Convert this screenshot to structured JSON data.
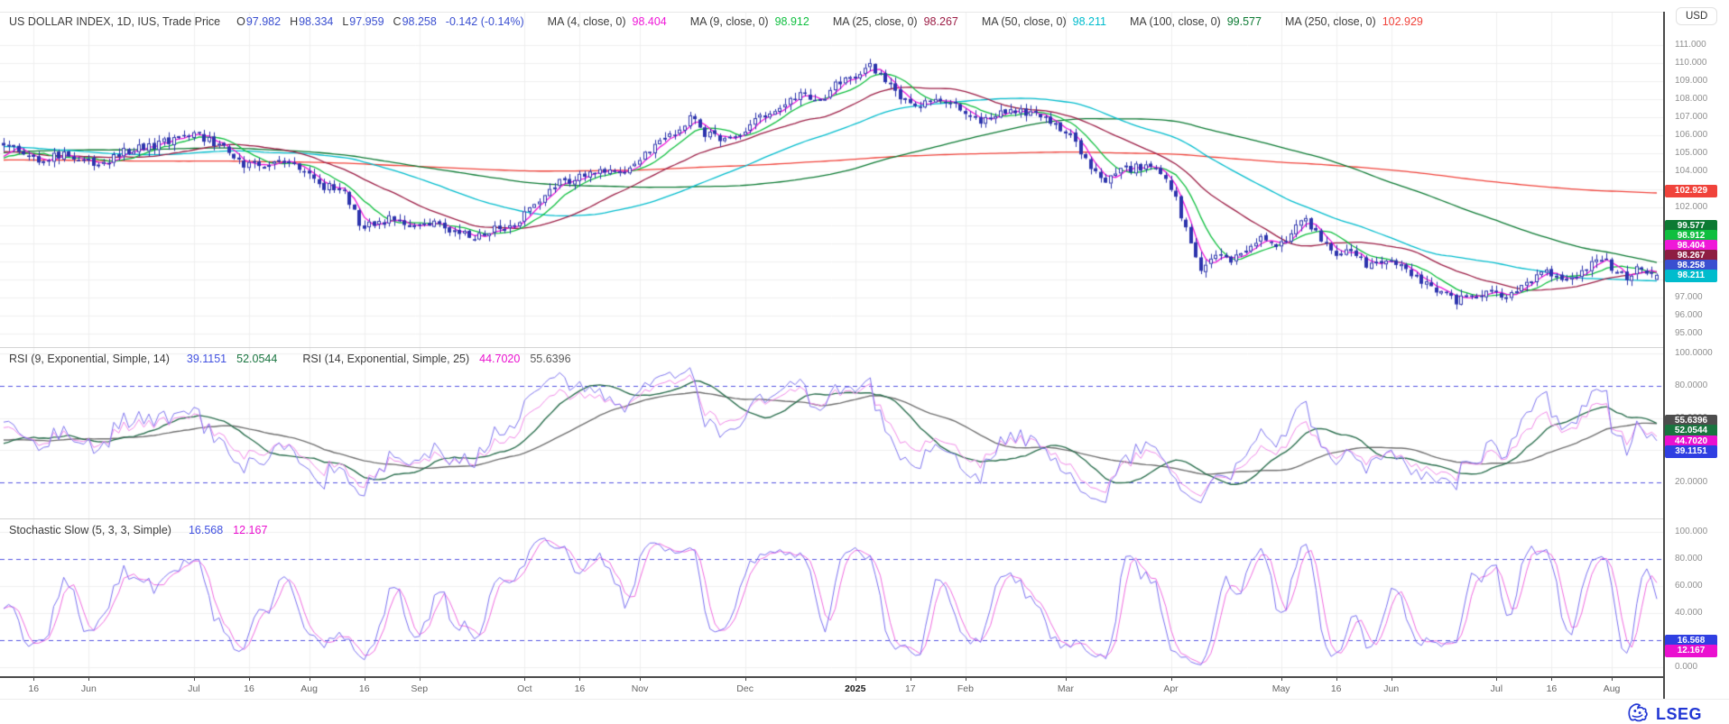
{
  "header": {
    "instrument": "US DOLLAR INDEX, 1D, IUS, Trade Price",
    "fields": [
      {
        "k": "O",
        "v": "97.982"
      },
      {
        "k": "H",
        "v": "98.334"
      },
      {
        "k": "L",
        "v": "97.959"
      },
      {
        "k": "C",
        "v": "98.258"
      }
    ],
    "change": "-0.142 (-0.14%)",
    "value_color": "#3a4fd0",
    "mas": [
      {
        "label": "MA (4, close, 0)",
        "value": "98.404",
        "color": "#ef18d8"
      },
      {
        "label": "MA (9, close, 0)",
        "value": "98.912",
        "color": "#0fbf3f"
      },
      {
        "label": "MA (25, close, 0)",
        "value": "98.267",
        "color": "#9c1e46"
      },
      {
        "label": "MA (50, close, 0)",
        "value": "98.211",
        "color": "#00bccd"
      },
      {
        "label": "MA (100, close, 0)",
        "value": "99.577",
        "color": "#0c7a33"
      },
      {
        "label": "MA (250, close, 0)",
        "value": "102.929",
        "color": "#f0433b"
      }
    ]
  },
  "currency_chip": "USD",
  "price_axis": {
    "ticks": [
      {
        "label": "111.000",
        "value": 111
      },
      {
        "label": "110.000",
        "value": 110
      },
      {
        "label": "109.000",
        "value": 109
      },
      {
        "label": "108.000",
        "value": 108
      },
      {
        "label": "107.000",
        "value": 107
      },
      {
        "label": "106.000",
        "value": 106
      },
      {
        "label": "105.000",
        "value": 105
      },
      {
        "label": "104.000",
        "value": 104
      },
      {
        "label": "103.000",
        "value": 103
      },
      {
        "label": "102.000",
        "value": 102
      },
      {
        "label": "101.000",
        "value": 101
      },
      {
        "label": "100.000",
        "value": 100
      },
      {
        "label": "99.000",
        "value": 99
      },
      {
        "label": "98.000",
        "value": 98
      },
      {
        "label": "97.000",
        "value": 97
      },
      {
        "label": "96.000",
        "value": 96
      },
      {
        "label": "95.000",
        "value": 95
      }
    ],
    "badges": [
      {
        "label": "102.929",
        "value": 102.929,
        "color": "#f0433b"
      },
      {
        "label": "99.577",
        "value": 99.577,
        "color": "#0c7a33"
      },
      {
        "label": "98.912",
        "value": 98.912,
        "color": "#0fbf3f"
      },
      {
        "label": "98.404",
        "value": 98.404,
        "color": "#ef18d8"
      },
      {
        "label": "98.267",
        "value": 98.267,
        "color": "#8e1d42"
      },
      {
        "label": "98.258",
        "value": 98.258,
        "color": "#3a4fd0"
      },
      {
        "label": "98.211",
        "value": 98.211,
        "color": "#00bccd"
      }
    ]
  },
  "rsi": {
    "title_1": "RSI (9, Exponential, Simple, 14)",
    "v1": {
      "text": "39.1151",
      "color": "#4050e0"
    },
    "v2": {
      "text": "52.0544",
      "color": "#19743f"
    },
    "title_2": "RSI (14, Exponential, Simple, 25)",
    "v3": {
      "text": "44.7020",
      "color": "#ea10cf"
    },
    "v4": {
      "text": "55.6396",
      "color": "#5a5a5a"
    },
    "ticks": [
      {
        "label": "100.0000",
        "value": 100
      },
      {
        "label": "80.0000",
        "value": 80
      },
      {
        "label": "60.0000",
        "value": 60
      },
      {
        "label": "40.0000",
        "value": 40
      },
      {
        "label": "20.0000",
        "value": 20
      }
    ],
    "badges": [
      {
        "label": "55.6396",
        "value": 55.6396,
        "color": "#4d4d4d"
      },
      {
        "label": "52.0544",
        "value": 52.0544,
        "color": "#19743f"
      },
      {
        "label": "44.7020",
        "value": 44.702,
        "color": "#ea10cf"
      },
      {
        "label": "39.1151",
        "value": 39.1151,
        "color": "#2f3fe2"
      }
    ]
  },
  "stoch": {
    "title": "Stochastic Slow (5, 3, 3, Simple)",
    "v1": {
      "text": "16.568",
      "color": "#4050e0"
    },
    "v2": {
      "text": "12.167",
      "color": "#ea10cf"
    },
    "ticks": [
      {
        "label": "100.000",
        "value": 100
      },
      {
        "label": "80.000",
        "value": 80
      },
      {
        "label": "60.000",
        "value": 60
      },
      {
        "label": "40.000",
        "value": 40
      },
      {
        "label": "20.000",
        "value": 20
      },
      {
        "label": "0.000",
        "value": 0
      }
    ],
    "badges": [
      {
        "label": "16.568",
        "value": 16.568,
        "color": "#2f3fe2"
      },
      {
        "label": "12.167",
        "value": 12.167,
        "color": "#ea10cf"
      }
    ]
  },
  "footer": {
    "logo_text": "LSEG",
    "logo_color": "#2136d4"
  },
  "chart_data": [
    {
      "type": "candlestick",
      "title": "US DOLLAR INDEX, 1D, IUS, Trade Price",
      "ylabel": "USD",
      "ylim": [
        94.4,
        111.8
      ],
      "y_ticks": [
        111,
        110,
        109,
        108,
        107,
        106,
        105,
        104,
        103,
        102,
        101,
        100,
        99,
        98,
        97,
        96,
        95
      ],
      "grid": true,
      "n_bars": 331,
      "candle_color": "#2d34ad",
      "last_bar": {
        "o": 97.982,
        "h": 98.334,
        "l": 97.959,
        "c": 98.258
      },
      "x_ticks": [
        {
          "label": "16",
          "day": 6
        },
        {
          "label": "Jun",
          "day": 17
        },
        {
          "label": "Jul",
          "day": 38
        },
        {
          "label": "16",
          "day": 49
        },
        {
          "label": "Aug",
          "day": 61
        },
        {
          "label": "16",
          "day": 72
        },
        {
          "label": "Sep",
          "day": 83
        },
        {
          "label": "Oct",
          "day": 104
        },
        {
          "label": "16",
          "day": 115
        },
        {
          "label": "Nov",
          "day": 127
        },
        {
          "label": "Dec",
          "day": 148
        },
        {
          "label": "2025",
          "day": 170,
          "bold": true
        },
        {
          "label": "17",
          "day": 181
        },
        {
          "label": "Feb",
          "day": 192
        },
        {
          "label": "Mar",
          "day": 212
        },
        {
          "label": "Apr",
          "day": 233
        },
        {
          "label": "May",
          "day": 255
        },
        {
          "label": "16",
          "day": 266
        },
        {
          "label": "Jun",
          "day": 277
        },
        {
          "label": "Jul",
          "day": 298
        },
        {
          "label": "16",
          "day": 309
        },
        {
          "label": "Aug",
          "day": 321
        }
      ],
      "close_anchors": [
        [
          0,
          105.6
        ],
        [
          4,
          105.1
        ],
        [
          8,
          104.6
        ],
        [
          12,
          105.0
        ],
        [
          16,
          104.5
        ],
        [
          20,
          104.35
        ],
        [
          24,
          105.1
        ],
        [
          28,
          105.3
        ],
        [
          32,
          105.6
        ],
        [
          36,
          106.0
        ],
        [
          40,
          105.85
        ],
        [
          44,
          105.3
        ],
        [
          48,
          104.4
        ],
        [
          52,
          104.25
        ],
        [
          56,
          104.5
        ],
        [
          60,
          104.1
        ],
        [
          64,
          103.2
        ],
        [
          68,
          102.9
        ],
        [
          71,
          101.1
        ],
        [
          74,
          100.9
        ],
        [
          78,
          101.5
        ],
        [
          82,
          100.9
        ],
        [
          86,
          101.1
        ],
        [
          90,
          100.6
        ],
        [
          94,
          100.3
        ],
        [
          98,
          100.8
        ],
        [
          102,
          101.2
        ],
        [
          106,
          102.0
        ],
        [
          110,
          103.3
        ],
        [
          114,
          103.5
        ],
        [
          118,
          104.0
        ],
        [
          122,
          103.9
        ],
        [
          126,
          104.3
        ],
        [
          130,
          105.4
        ],
        [
          134,
          106.2
        ],
        [
          137,
          107.0
        ],
        [
          140,
          106.0
        ],
        [
          144,
          105.8
        ],
        [
          148,
          106.3
        ],
        [
          152,
          107.1
        ],
        [
          156,
          107.9
        ],
        [
          160,
          108.3
        ],
        [
          163,
          107.9
        ],
        [
          166,
          108.9
        ],
        [
          170,
          109.2
        ],
        [
          173,
          110.0
        ],
        [
          176,
          109.0
        ],
        [
          179,
          107.9
        ],
        [
          183,
          107.8
        ],
        [
          187,
          108.0
        ],
        [
          191,
          107.5
        ],
        [
          195,
          106.8
        ],
        [
          199,
          107.2
        ],
        [
          203,
          107.3
        ],
        [
          207,
          107.0
        ],
        [
          211,
          106.3
        ],
        [
          214,
          105.8
        ],
        [
          217,
          103.9
        ],
        [
          220,
          103.6
        ],
        [
          224,
          104.1
        ],
        [
          228,
          104.3
        ],
        [
          231,
          103.9
        ],
        [
          234,
          102.5
        ],
        [
          237,
          99.8
        ],
        [
          239,
          98.4
        ],
        [
          242,
          99.6
        ],
        [
          245,
          99.1
        ],
        [
          248,
          99.6
        ],
        [
          251,
          100.2
        ],
        [
          254,
          99.7
        ],
        [
          257,
          100.6
        ],
        [
          260,
          101.3
        ],
        [
          263,
          100.2
        ],
        [
          266,
          99.2
        ],
        [
          269,
          99.6
        ],
        [
          272,
          98.9
        ],
        [
          275,
          99.1
        ],
        [
          278,
          98.8
        ],
        [
          281,
          98.4
        ],
        [
          284,
          97.8
        ],
        [
          287,
          97.3
        ],
        [
          290,
          96.8
        ],
        [
          293,
          97.0
        ],
        [
          296,
          97.4
        ],
        [
          299,
          96.9
        ],
        [
          302,
          97.3
        ],
        [
          305,
          97.9
        ],
        [
          308,
          98.6
        ],
        [
          311,
          97.8
        ],
        [
          314,
          98.3
        ],
        [
          317,
          98.8
        ],
        [
          320,
          99.0
        ],
        [
          322,
          98.4
        ],
        [
          324,
          98.15
        ],
        [
          326,
          98.5
        ],
        [
          328,
          98.4
        ],
        [
          330,
          98.258
        ]
      ],
      "overlays": [
        {
          "name": "MA 250",
          "period": 250,
          "color": "#f0433b",
          "last": 102.929
        },
        {
          "name": "MA 100",
          "period": 100,
          "color": "#0c7a33",
          "last": 99.577
        },
        {
          "name": "MA 50",
          "period": 50,
          "color": "#00bccd",
          "last": 98.211
        },
        {
          "name": "MA 25",
          "period": 25,
          "color": "#9c1e46",
          "last": 98.267
        },
        {
          "name": "MA 9",
          "period": 9,
          "color": "#0fbf3f",
          "last": 98.912
        },
        {
          "name": "MA 4",
          "period": 4,
          "color": "#ef18d8",
          "last": 98.404
        }
      ]
    },
    {
      "type": "line",
      "title": "RSI (9, Exponential, Simple, 14) + RSI (14, Exponential, Simple, 25)",
      "ylim": [
        0,
        100
      ],
      "guides": [
        80,
        20
      ],
      "series": [
        {
          "name": "RSI 9",
          "color": "#7e74ee",
          "last": 39.1151
        },
        {
          "name": "RSI 9 MA 14",
          "color": "#2d7050",
          "last": 52.0544
        },
        {
          "name": "RSI 14",
          "color": "#f08ae8",
          "last": 44.702
        },
        {
          "name": "RSI 14 MA 25",
          "color": "#707070",
          "last": 55.6396
        }
      ]
    },
    {
      "type": "line",
      "title": "Stochastic Slow (5, 3, 3, Simple)",
      "ylim": [
        0,
        100
      ],
      "guides": [
        80,
        20
      ],
      "params": {
        "k": 5,
        "k_smooth": 3,
        "d": 3
      },
      "series": [
        {
          "name": "%K",
          "color": "#7a70f0",
          "last": 16.568
        },
        {
          "name": "%D",
          "color": "#ef6ce0",
          "last": 12.167
        }
      ]
    }
  ]
}
